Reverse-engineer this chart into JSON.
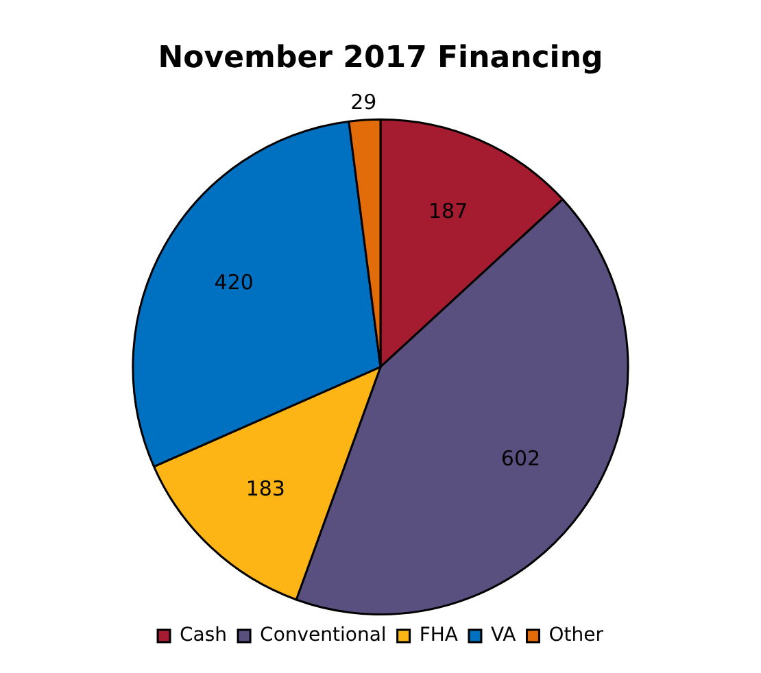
{
  "chart_data": {
    "type": "pie",
    "title": "November 2017 Financing",
    "categories": [
      "Cash",
      "Conventional",
      "FHA",
      "VA",
      "Other"
    ],
    "values": [
      187,
      602,
      183,
      420,
      29
    ],
    "colors": [
      "#a51c30",
      "#5a5080",
      "#fdb515",
      "#0070c0",
      "#e36c0a"
    ],
    "data_labels": true,
    "legend": "bottom"
  }
}
